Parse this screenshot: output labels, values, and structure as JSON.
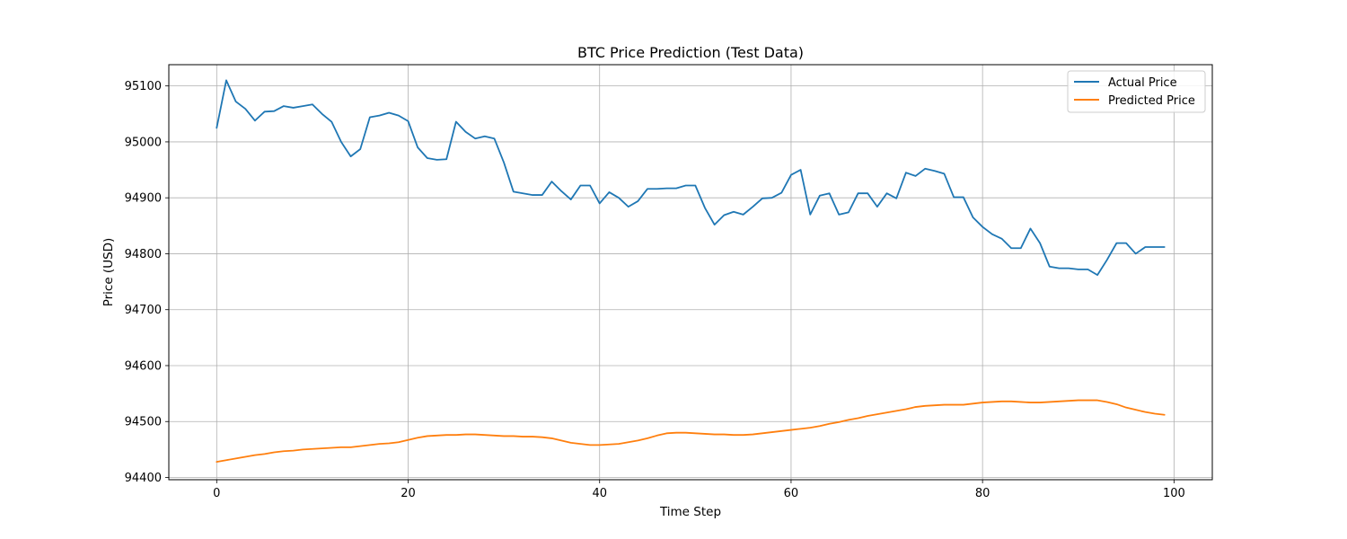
{
  "chart_data": {
    "type": "line",
    "title": "BTC Price Prediction (Test Data)",
    "xlabel": "Time Step",
    "ylabel": "Price (USD)",
    "xlim": [
      -5,
      104
    ],
    "ylim": [
      94396,
      95138
    ],
    "xticks": [
      0,
      20,
      40,
      60,
      80,
      100
    ],
    "yticks": [
      94400,
      94500,
      94600,
      94700,
      94800,
      94900,
      95000,
      95100
    ],
    "grid": true,
    "legend_position": "top-right",
    "x": [
      0,
      1,
      2,
      3,
      4,
      5,
      6,
      7,
      8,
      9,
      10,
      11,
      12,
      13,
      14,
      15,
      16,
      17,
      18,
      19,
      20,
      21,
      22,
      23,
      24,
      25,
      26,
      27,
      28,
      29,
      30,
      31,
      32,
      33,
      34,
      35,
      36,
      37,
      38,
      39,
      40,
      41,
      42,
      43,
      44,
      45,
      46,
      47,
      48,
      49,
      50,
      51,
      52,
      53,
      54,
      55,
      56,
      57,
      58,
      59,
      60,
      61,
      62,
      63,
      64,
      65,
      66,
      67,
      68,
      69,
      70,
      71,
      72,
      73,
      74,
      75,
      76,
      77,
      78,
      79,
      80,
      81,
      82,
      83,
      84,
      85,
      86,
      87,
      88,
      89,
      90,
      91,
      92,
      93,
      94,
      95,
      96,
      97,
      98,
      99
    ],
    "series": [
      {
        "name": "Actual Price",
        "color": "#1f77b4",
        "values": [
          95025,
          95110,
          95072,
          95059,
          95038,
          95054,
          95055,
          95064,
          95061,
          95064,
          95067,
          95050,
          95036,
          95000,
          94974,
          94987,
          95044,
          95047,
          95052,
          95047,
          95037,
          94990,
          94971,
          94968,
          94969,
          95036,
          95018,
          95006,
          95010,
          95006,
          94963,
          94911,
          94908,
          94905,
          94905,
          94929,
          94912,
          94897,
          94922,
          94922,
          94890,
          94910,
          94900,
          94884,
          94894,
          94916,
          94916,
          94917,
          94917,
          94922,
          94922,
          94882,
          94852,
          94869,
          94875,
          94870,
          94884,
          94899,
          94900,
          94909,
          94941,
          94950,
          94870,
          94904,
          94908,
          94870,
          94874,
          94908,
          94908,
          94884,
          94908,
          94899,
          94945,
          94939,
          94952,
          94948,
          94943,
          94901,
          94901,
          94865,
          94848,
          94835,
          94827,
          94810,
          94810,
          94845,
          94819,
          94777,
          94774,
          94774,
          94772,
          94772,
          94762,
          94789,
          94819,
          94819,
          94800,
          94812,
          94812,
          94812
        ]
      },
      {
        "name": "Predicted Price",
        "color": "#ff7f0e",
        "values": [
          94428,
          94431,
          94434,
          94437,
          94440,
          94442,
          94445,
          94447,
          94448,
          94450,
          94451,
          94452,
          94453,
          94454,
          94454,
          94456,
          94458,
          94460,
          94461,
          94463,
          94467,
          94471,
          94474,
          94475,
          94476,
          94476,
          94477,
          94477,
          94476,
          94475,
          94474,
          94474,
          94473,
          94473,
          94472,
          94470,
          94466,
          94462,
          94460,
          94458,
          94458,
          94459,
          94460,
          94463,
          94466,
          94470,
          94475,
          94479,
          94480,
          94480,
          94479,
          94478,
          94477,
          94477,
          94476,
          94476,
          94477,
          94479,
          94481,
          94483,
          94485,
          94487,
          94489,
          94492,
          94496,
          94499,
          94503,
          94506,
          94510,
          94513,
          94516,
          94519,
          94522,
          94526,
          94528,
          94529,
          94530,
          94530,
          94530,
          94532,
          94534,
          94535,
          94536,
          94536,
          94535,
          94534,
          94534,
          94535,
          94536,
          94537,
          94538,
          94538,
          94538,
          94535,
          94531,
          94525,
          94521,
          94517,
          94514,
          94512
        ]
      }
    ]
  }
}
